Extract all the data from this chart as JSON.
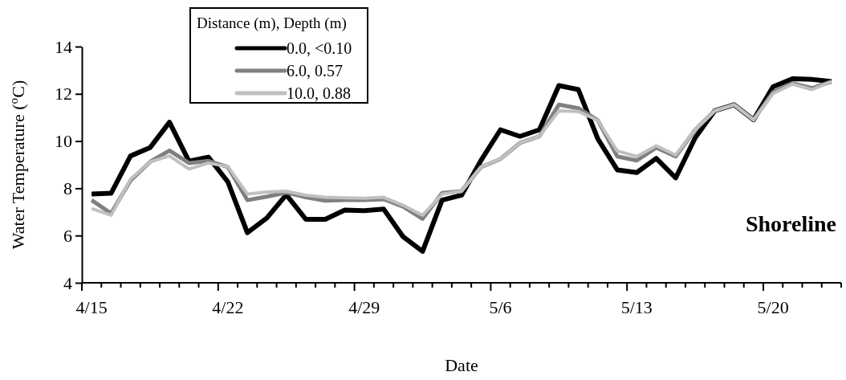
{
  "chart_data": {
    "type": "line",
    "xlabel": "Date",
    "ylabel": "Water Temperature ($^{o}$C)",
    "legend_title": "Distance (m), Depth (m)",
    "legend": "top",
    "grid": false,
    "marker": "none",
    "line_style": "solid",
    "annotations": [
      "Shoreline"
    ],
    "categories": [
      "4/15",
      null,
      null,
      null,
      null,
      null,
      null,
      "4/22",
      null,
      null,
      null,
      null,
      null,
      null,
      "4/29",
      null,
      null,
      null,
      null,
      null,
      null,
      "5/6",
      null,
      null,
      null,
      null,
      null,
      null,
      "5/13",
      null,
      null,
      null,
      null,
      null,
      null,
      "5/20",
      null,
      null,
      null
    ],
    "ylim": [
      4,
      14
    ],
    "yticks": [
      4,
      6,
      8,
      10,
      12,
      14
    ],
    "series": [
      {
        "name": "0.0, <0.10",
        "color": "#000000",
        "values": [
          7.76,
          7.79,
          9.37,
          9.72,
          10.8,
          9.15,
          9.32,
          8.27,
          6.12,
          6.74,
          7.73,
          6.69,
          6.69,
          7.08,
          7.05,
          7.12,
          5.95,
          5.33,
          7.5,
          7.71,
          9.18,
          10.48,
          10.2,
          10.48,
          12.35,
          12.18,
          10.09,
          8.78,
          8.67,
          9.27,
          8.44,
          10.14,
          11.28,
          11.54,
          10.9,
          12.3,
          12.64,
          12.61,
          12.52
        ]
      },
      {
        "name": "6.0, 0.57",
        "color": "#808080",
        "values": [
          7.5,
          6.94,
          8.33,
          9.12,
          9.6,
          9.07,
          9.16,
          8.9,
          7.5,
          7.65,
          7.82,
          7.62,
          7.48,
          7.5,
          7.5,
          7.54,
          7.23,
          6.71,
          7.8,
          7.88,
          8.9,
          9.24,
          9.92,
          10.2,
          11.54,
          11.39,
          10.88,
          9.35,
          9.18,
          9.72,
          9.35,
          10.48,
          11.28,
          11.54,
          10.9,
          12.07,
          12.45,
          12.24,
          12.52
        ]
      },
      {
        "name": "10.0, 0.88",
        "color": "#c0c0c0",
        "values": [
          7.14,
          6.86,
          8.39,
          9.12,
          9.37,
          8.82,
          9.07,
          8.92,
          7.76,
          7.84,
          7.88,
          7.71,
          7.62,
          7.6,
          7.58,
          7.62,
          7.28,
          6.86,
          7.75,
          7.88,
          8.9,
          9.24,
          9.92,
          10.2,
          11.28,
          11.25,
          10.88,
          9.58,
          9.35,
          9.8,
          9.41,
          10.48,
          11.28,
          11.54,
          10.9,
          12.01,
          12.41,
          12.18,
          12.52
        ]
      }
    ]
  }
}
